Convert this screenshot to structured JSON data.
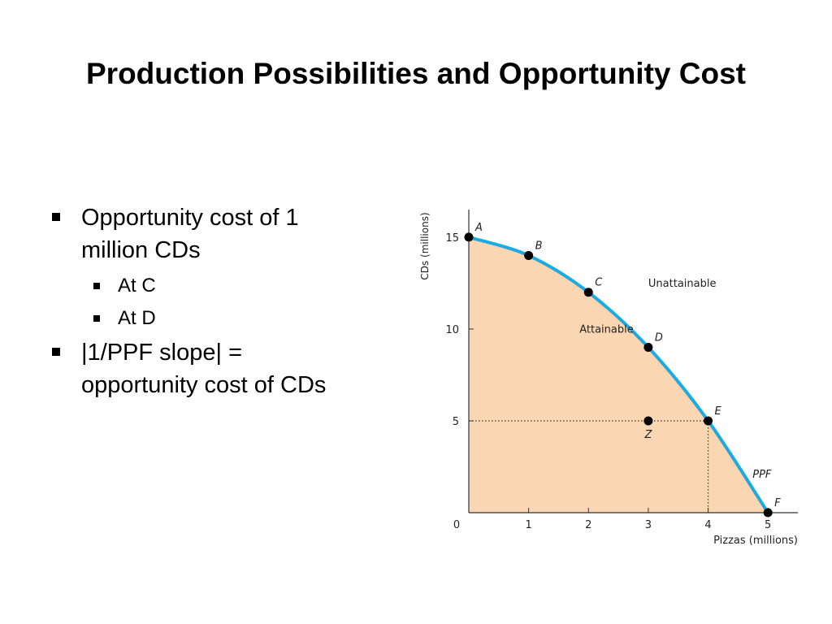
{
  "slide": {
    "title": "Production Possibilities and Opportunity Cost",
    "bullets": [
      {
        "text": "Opportunity cost of 1 million CDs",
        "line1": "Opportunity cost of 1",
        "line2": "million CDs",
        "sub": [
          "At C",
          "At D"
        ]
      },
      {
        "text": "|1/PPF slope| = opportunity cost of CDs",
        "line1": "|1/PPF slope| =",
        "line2": "opportunity cost of CDs"
      }
    ]
  },
  "chart_data": {
    "type": "line",
    "title": "",
    "xlabel": "Pizzas (millions)",
    "ylabel": "CDs (millions)",
    "xlim": [
      0,
      5.5
    ],
    "ylim": [
      0,
      16.5
    ],
    "x_ticks": [
      0,
      1,
      2,
      3,
      4,
      5
    ],
    "y_ticks": [
      5,
      10,
      15
    ],
    "origin_label": "0",
    "series": [
      {
        "name": "PPF",
        "points": [
          {
            "label": "A",
            "x": 0,
            "y": 15
          },
          {
            "label": "B",
            "x": 1,
            "y": 14
          },
          {
            "label": "C",
            "x": 2,
            "y": 12
          },
          {
            "label": "D",
            "x": 3,
            "y": 9
          },
          {
            "label": "E",
            "x": 4,
            "y": 5
          },
          {
            "label": "F",
            "x": 5,
            "y": 0
          }
        ]
      }
    ],
    "extra_points": [
      {
        "label": "Z",
        "x": 3,
        "y": 5
      }
    ],
    "guide_lines": [
      {
        "from": [
          0,
          5
        ],
        "to": [
          4,
          5
        ]
      },
      {
        "from": [
          4,
          5
        ],
        "to": [
          4,
          0
        ]
      }
    ],
    "region_labels": {
      "attainable": "Attainable",
      "unattainable": "Unattainable"
    },
    "colors": {
      "curve": "#1aabe6",
      "fill": "#fbd6b2",
      "point": "#000000",
      "axis": "#333333"
    }
  }
}
